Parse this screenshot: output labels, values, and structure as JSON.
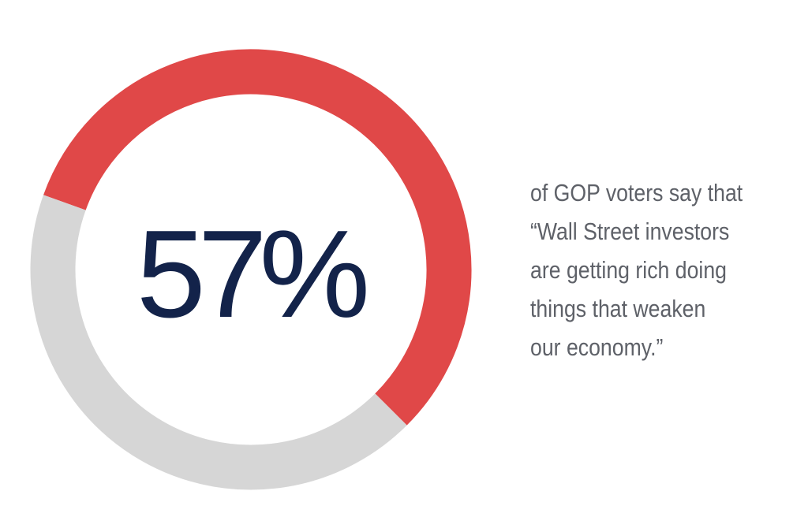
{
  "chart_data": {
    "type": "pie",
    "value_label": "57%",
    "slices": [
      {
        "value": 57,
        "color": "#e04848"
      },
      {
        "value": 43,
        "color": "#d6d6d6"
      }
    ]
  },
  "colors": {
    "value_text": "#13234a",
    "statement_text": "#5e6168"
  },
  "statement": {
    "lines": [
      "of GOP voters say that",
      "“Wall Street investors",
      "are getting rich doing",
      "things that weaken",
      "our economy.”"
    ]
  }
}
